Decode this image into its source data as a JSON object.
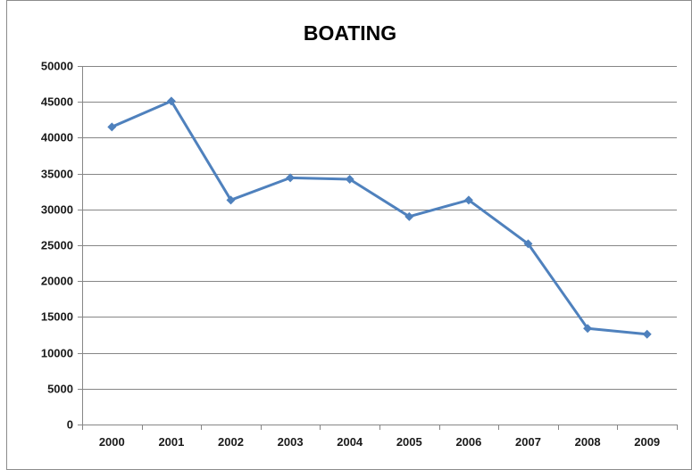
{
  "chart_data": {
    "type": "line",
    "title": "BOATING",
    "xlabel": "",
    "ylabel": "",
    "categories": [
      "2000",
      "2001",
      "2002",
      "2003",
      "2004",
      "2005",
      "2006",
      "2007",
      "2008",
      "2009"
    ],
    "series": [
      {
        "values": [
          41500,
          45100,
          31300,
          34400,
          34200,
          29000,
          31300,
          25200,
          13400,
          12600
        ],
        "color": "#4f81bd",
        "marker": "diamond"
      }
    ],
    "ylim": [
      0,
      50000
    ],
    "yticks": [
      0,
      5000,
      10000,
      15000,
      20000,
      25000,
      30000,
      35000,
      40000,
      45000,
      50000
    ],
    "grid": true,
    "legend": "none"
  }
}
